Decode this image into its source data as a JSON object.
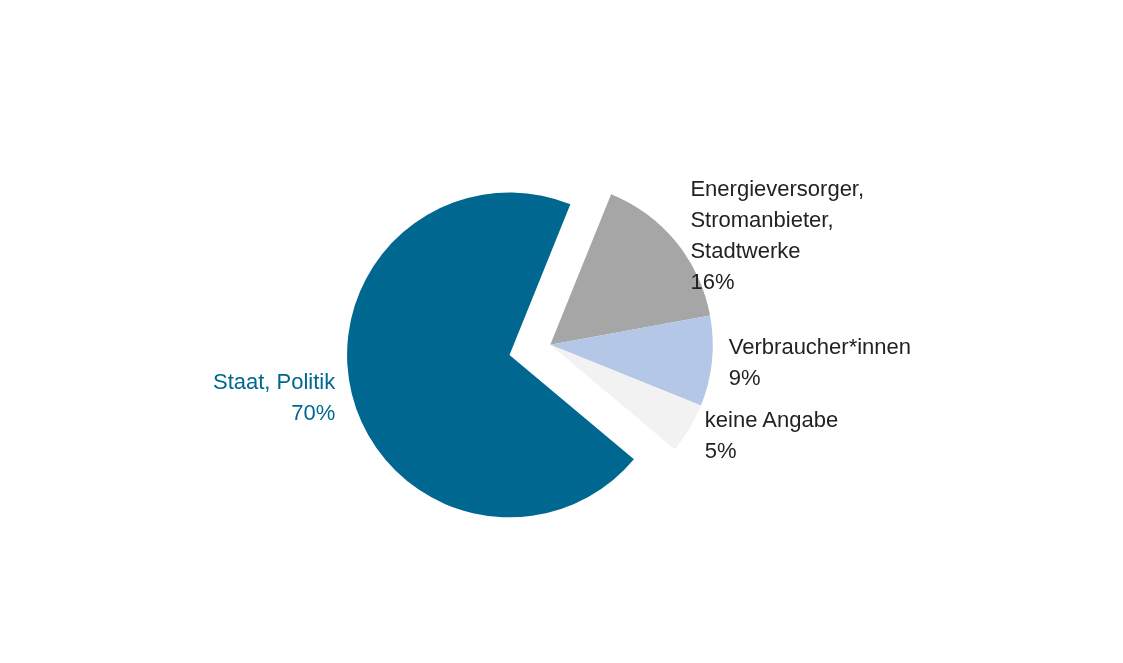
{
  "chart_data": {
    "type": "pie",
    "categories": [
      "Energieversorger, Stromanbieter, Stadtwerke",
      "Verbraucher*innen",
      "keine Angabe",
      "Staat, Politik"
    ],
    "values": [
      16,
      9,
      5,
      70
    ],
    "value_labels": [
      "16%",
      "9%",
      "5%",
      "70%"
    ],
    "colors": [
      "#a6a6a6",
      "#b4c7e7",
      "#f2f2f2",
      "#006890"
    ]
  }
}
